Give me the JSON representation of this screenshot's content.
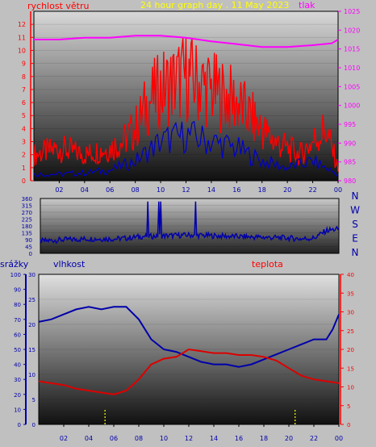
{
  "header": {
    "title": "24 hour graph day . 11 May 2023",
    "left_label": "rychlost větru",
    "right_label": "tlak"
  },
  "colors": {
    "background": "#c0c0c0",
    "wind": "#ff0000",
    "wind_gust": "#0000cc",
    "pressure": "#ff00ff",
    "direction": "#0000aa",
    "humidity": "#0000aa",
    "temperature": "#dd0000",
    "rain": "#ffff00",
    "title": "#ffff00",
    "rain_axis": "#0000aa",
    "humidity_axis": "#0000aa",
    "temp_axis": "#ff0000"
  },
  "chart_data": [
    {
      "type": "line",
      "name": "wind-pressure",
      "x_ticks": [
        "02",
        "04",
        "06",
        "08",
        "10",
        "12",
        "14",
        "16",
        "18",
        "20",
        "22",
        "00"
      ],
      "left_ticks": [
        "0",
        "1",
        "2",
        "3",
        "4",
        "5",
        "6",
        "7",
        "8",
        "9",
        "10",
        "11",
        "12"
      ],
      "right_ticks": [
        "980",
        "985",
        "990",
        "995",
        "1000",
        "1005",
        "1010",
        "1015",
        "1020",
        "1025"
      ],
      "ylim_left": [
        0,
        13
      ],
      "ylim_right": [
        980,
        1025
      ],
      "pressure": {
        "x": [
          0,
          2,
          4,
          6,
          8,
          10,
          12,
          14,
          16,
          18,
          20,
          22,
          23.5,
          24
        ],
        "y": [
          1017.5,
          1017.5,
          1018,
          1018,
          1018.5,
          1018.5,
          1018,
          1017,
          1016.3,
          1015.5,
          1015.5,
          1016,
          1016.5,
          1017.5
        ]
      },
      "wind_envelope": {
        "x": [
          0,
          2,
          4,
          6,
          7,
          8,
          9,
          10,
          11,
          12,
          13,
          14,
          15,
          16,
          17,
          18,
          19,
          20,
          21,
          22,
          23,
          24
        ],
        "y": [
          2,
          2.5,
          2,
          2.5,
          3,
          4,
          6,
          7,
          7.5,
          8,
          7.5,
          7,
          6.5,
          6,
          5,
          4,
          3,
          2.5,
          2,
          3,
          4,
          1
        ]
      },
      "gust_envelope": {
        "x": [
          0,
          2,
          4,
          6,
          8,
          10,
          12,
          14,
          16,
          18,
          20,
          22,
          24
        ],
        "y": [
          0.5,
          0.5,
          0.6,
          0.8,
          1.5,
          3,
          3.5,
          3,
          2.5,
          1.5,
          1,
          1.5,
          0.5
        ]
      }
    },
    {
      "type": "line",
      "name": "wind-direction",
      "x_ticks": [
        "02",
        "04",
        "06",
        "08",
        "10",
        "12",
        "14",
        "16",
        "18",
        "20",
        "22",
        "00"
      ],
      "y_ticks": [
        "0",
        "45",
        "90",
        "135",
        "180",
        "225",
        "270",
        "315",
        "360"
      ],
      "ylim": [
        0,
        360
      ],
      "compass": [
        "N",
        "W",
        "S",
        "E",
        "N"
      ],
      "direction": {
        "x": [
          0,
          2,
          4,
          6,
          7,
          8,
          10,
          12,
          14,
          16,
          18,
          20,
          21,
          22,
          23,
          24
        ],
        "y": [
          80,
          90,
          95,
          95,
          100,
          110,
          115,
          120,
          115,
          110,
          105,
          100,
          95,
          100,
          150,
          160
        ]
      }
    },
    {
      "type": "line",
      "name": "humidity-temperature",
      "header": {
        "rain_label": "srážky",
        "humidity_label": "vlhkost",
        "temp_label": "teplota"
      },
      "x_ticks": [
        "02",
        "04",
        "06",
        "08",
        "10",
        "12",
        "14",
        "16",
        "18",
        "20",
        "22",
        "00"
      ],
      "rain_ticks": [
        "0",
        "10",
        "20",
        "30",
        "40",
        "50",
        "60",
        "70",
        "80",
        "90",
        "100"
      ],
      "humidity_ticks": [
        "0",
        "5",
        "10",
        "15",
        "20",
        "25",
        "30"
      ],
      "temp_ticks": [
        "0",
        "5",
        "10",
        "15",
        "20",
        "25",
        "30",
        "35",
        "40"
      ],
      "ylim_humidity": [
        0,
        30
      ],
      "ylim_temp": [
        0,
        40
      ],
      "ylim_rain": [
        0,
        100
      ],
      "humidity": {
        "x": [
          0,
          1,
          2,
          3,
          4,
          5,
          6,
          7,
          8,
          9,
          10,
          11,
          12,
          13,
          14,
          15,
          16,
          17,
          18,
          19,
          20,
          21,
          22,
          23,
          23.5,
          24
        ],
        "y": [
          20.5,
          21,
          22,
          23,
          23.5,
          23,
          23.5,
          23.5,
          21,
          17,
          15,
          14.5,
          13.5,
          12.5,
          12,
          12,
          11.5,
          12,
          13,
          14,
          15,
          16,
          17,
          17,
          19,
          22
        ]
      },
      "temperature": {
        "x": [
          0,
          1,
          2,
          3,
          4,
          5,
          6,
          7,
          8,
          9,
          10,
          11,
          12,
          13,
          14,
          15,
          16,
          17,
          18,
          19,
          20,
          21,
          22,
          23,
          24
        ],
        "y": [
          11.5,
          11,
          10.5,
          9.5,
          9,
          8.5,
          8,
          9,
          12,
          16,
          17.5,
          18,
          20,
          19.5,
          19,
          19,
          18.5,
          18.5,
          18,
          17,
          15,
          13,
          12,
          11.5,
          11
        ]
      },
      "rain": {
        "x": [
          5.3,
          20.5
        ],
        "y": [
          10,
          10
        ]
      }
    }
  ]
}
